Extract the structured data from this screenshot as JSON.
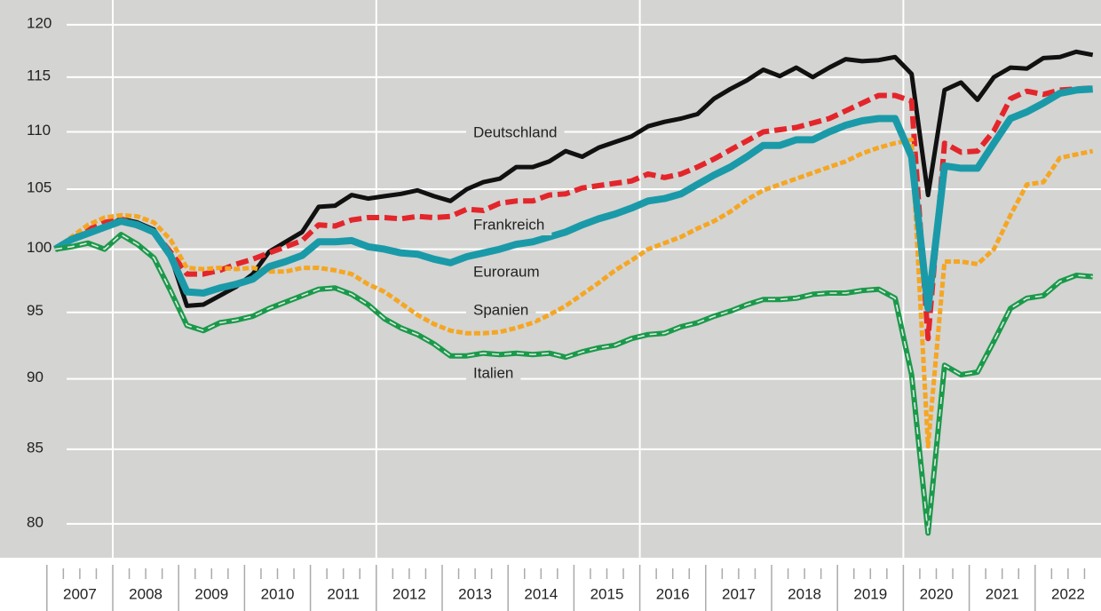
{
  "chart_data": {
    "type": "line",
    "log_scale": true,
    "grid": true,
    "ylim": [
      78,
      122
    ],
    "yticks": [
      80,
      85,
      90,
      95,
      100,
      105,
      110,
      115,
      120
    ],
    "xlim": [
      2007,
      2023
    ],
    "xticks": [
      2007,
      2008,
      2009,
      2010,
      2011,
      2012,
      2013,
      2014,
      2015,
      2016,
      2017,
      2018,
      2019,
      2020,
      2021,
      2022
    ],
    "xgrid": [
      2008,
      2012,
      2016,
      2020
    ],
    "x": [
      2007.125,
      2007.375,
      2007.625,
      2007.875,
      2008.125,
      2008.375,
      2008.625,
      2008.875,
      2009.125,
      2009.375,
      2009.625,
      2009.875,
      2010.125,
      2010.375,
      2010.625,
      2010.875,
      2011.125,
      2011.375,
      2011.625,
      2011.875,
      2012.125,
      2012.375,
      2012.625,
      2012.875,
      2013.125,
      2013.375,
      2013.625,
      2013.875,
      2014.125,
      2014.375,
      2014.625,
      2014.875,
      2015.125,
      2015.375,
      2015.625,
      2015.875,
      2016.125,
      2016.375,
      2016.625,
      2016.875,
      2017.125,
      2017.375,
      2017.625,
      2017.875,
      2018.125,
      2018.375,
      2018.625,
      2018.875,
      2019.125,
      2019.375,
      2019.625,
      2019.875,
      2020.125,
      2020.375,
      2020.625,
      2020.875,
      2021.125,
      2021.375,
      2021.625,
      2021.875,
      2022.125,
      2022.375,
      2022.625,
      2022.875
    ],
    "series": [
      {
        "name": "Deutschland",
        "color": "#111111",
        "style": "solid",
        "values": [
          100,
          100.8,
          101.3,
          101.8,
          102.5,
          102.2,
          101.6,
          99.5,
          95.5,
          95.6,
          96.3,
          97.0,
          98.0,
          99.8,
          100.6,
          101.4,
          103.5,
          103.6,
          104.5,
          104.2,
          104.4,
          104.6,
          104.9,
          104.4,
          104.0,
          105.0,
          105.6,
          105.9,
          106.9,
          106.9,
          107.4,
          108.3,
          107.8,
          108.6,
          109.1,
          109.6,
          110.5,
          110.9,
          111.2,
          111.6,
          113.0,
          113.9,
          114.7,
          115.7,
          115.1,
          115.9,
          115.0,
          115.9,
          116.7,
          116.5,
          116.6,
          116.9,
          115.3,
          104.5,
          113.8,
          114.5,
          112.9,
          115.0,
          115.9,
          115.8,
          116.8,
          116.9,
          117.4,
          117.1
        ]
      },
      {
        "name": "Frankreich",
        "color": "#e3262b",
        "style": "dashed",
        "values": [
          100,
          100.8,
          101.6,
          102.2,
          102.5,
          101.9,
          101.4,
          99.8,
          98.0,
          98.0,
          98.3,
          98.8,
          99.2,
          99.7,
          100.2,
          100.7,
          102.0,
          101.9,
          102.4,
          102.6,
          102.6,
          102.5,
          102.7,
          102.6,
          102.7,
          103.3,
          103.2,
          103.8,
          104.0,
          104.0,
          104.5,
          104.6,
          105.1,
          105.3,
          105.5,
          105.7,
          106.3,
          106.0,
          106.3,
          106.9,
          107.6,
          108.4,
          109.2,
          110.0,
          110.2,
          110.4,
          110.8,
          111.2,
          111.9,
          112.6,
          113.3,
          113.3,
          112.8,
          93.0,
          109.0,
          108.2,
          108.3,
          110.1,
          113.0,
          113.7,
          113.4,
          113.8,
          113.9,
          114.0
        ]
      },
      {
        "name": "Spanien",
        "color": "#f5a623",
        "style": "dotted",
        "values": [
          100,
          101.0,
          102.0,
          102.6,
          102.8,
          102.7,
          102.2,
          100.8,
          98.5,
          98.4,
          98.5,
          98.4,
          98.5,
          98.2,
          98.2,
          98.5,
          98.5,
          98.3,
          98.0,
          97.2,
          96.6,
          95.7,
          94.8,
          94.1,
          93.6,
          93.4,
          93.4,
          93.5,
          93.8,
          94.2,
          94.8,
          95.5,
          96.4,
          97.3,
          98.3,
          99.1,
          100.0,
          100.5,
          101.0,
          101.7,
          102.3,
          103.1,
          104.1,
          104.9,
          105.4,
          105.9,
          106.4,
          106.9,
          107.4,
          108.1,
          108.6,
          109.0,
          109.3,
          85.2,
          99.0,
          99.0,
          98.8,
          100.0,
          102.8,
          105.4,
          105.6,
          107.7,
          108.0,
          108.3
        ]
      },
      {
        "name": "Euroraum",
        "color": "#1a9aa8",
        "style": "thick",
        "values": [
          100,
          100.8,
          101.3,
          101.8,
          102.3,
          102.0,
          101.4,
          99.5,
          96.6,
          96.5,
          96.9,
          97.2,
          97.6,
          98.6,
          99.0,
          99.5,
          100.6,
          100.6,
          100.7,
          100.2,
          100.0,
          99.7,
          99.6,
          99.2,
          98.9,
          99.4,
          99.7,
          100.0,
          100.4,
          100.6,
          101.0,
          101.4,
          102.0,
          102.5,
          102.9,
          103.4,
          104.0,
          104.2,
          104.6,
          105.4,
          106.2,
          106.9,
          107.8,
          108.8,
          108.8,
          109.3,
          109.3,
          110.0,
          110.6,
          111.0,
          111.2,
          111.2,
          107.8,
          95.3,
          107.0,
          106.8,
          106.8,
          109.0,
          111.2,
          111.8,
          112.6,
          113.5,
          113.8,
          113.9
        ]
      },
      {
        "name": "Italien",
        "color": "#1a9a4a",
        "style": "double",
        "values": [
          100,
          100.2,
          100.5,
          100.0,
          101.2,
          100.4,
          99.3,
          96.7,
          94.0,
          93.6,
          94.2,
          94.4,
          94.7,
          95.3,
          95.8,
          96.3,
          96.8,
          96.9,
          96.4,
          95.6,
          94.5,
          93.8,
          93.3,
          92.6,
          91.7,
          91.7,
          91.9,
          91.8,
          91.9,
          91.8,
          91.9,
          91.6,
          92.0,
          92.3,
          92.5,
          93.0,
          93.3,
          93.4,
          93.9,
          94.2,
          94.7,
          95.1,
          95.6,
          96.0,
          96.0,
          96.1,
          96.4,
          96.5,
          96.5,
          96.7,
          96.8,
          96.1,
          90.3,
          79.4,
          91.0,
          90.3,
          90.5,
          92.8,
          95.3,
          96.1,
          96.3,
          97.4,
          97.9,
          97.8
        ]
      }
    ]
  }
}
